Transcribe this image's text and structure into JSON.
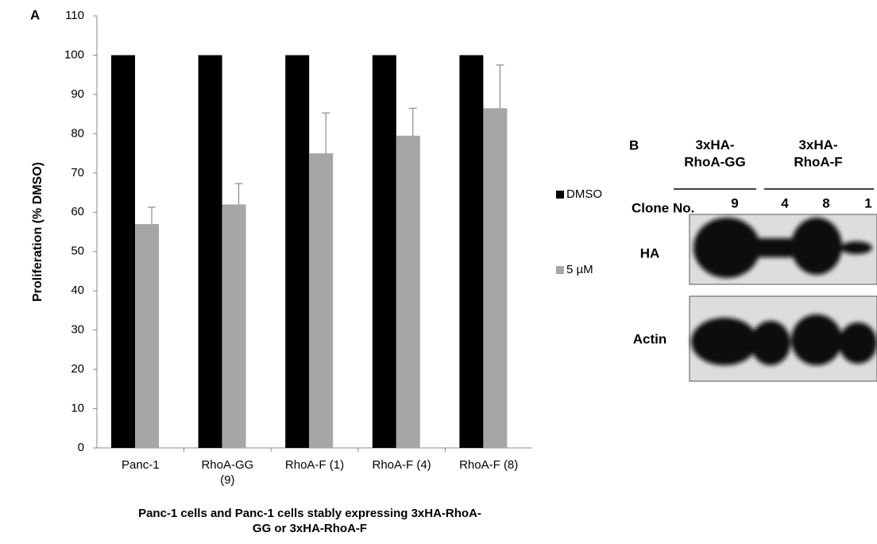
{
  "chart_data": {
    "type": "bar",
    "panel_label": "A",
    "ylabel": "Proliferation  (% DMSO)",
    "xlabel": "Panc-1  cells and Panc-1 cells stably expressing 3xHA-RhoA-\nGG or 3xHA-RhoA-F",
    "categories": [
      "Panc-1",
      "RhoA-GG\n(9)",
      "RhoA-F (1)",
      "RhoA-F (4)",
      "RhoA-F (8)"
    ],
    "series": [
      {
        "name": "DMSO",
        "color": "#000000",
        "values": [
          100,
          100,
          100,
          100,
          100
        ]
      },
      {
        "name": "5 µM",
        "color": "#a6a6a6",
        "values": [
          57,
          62,
          75,
          79.5,
          86.5
        ],
        "errors": [
          4.3,
          5.3,
          10.3,
          7,
          11
        ]
      }
    ],
    "ylim": [
      0,
      110
    ],
    "yticks": [
      0,
      10,
      20,
      30,
      40,
      50,
      60,
      70,
      80,
      90,
      100,
      110
    ],
    "grid": false,
    "legend": "right"
  },
  "panel_b": {
    "label": "B",
    "groups": [
      "3xHA-\nRhoA-GG",
      "3xHA-\nRhoA-F"
    ],
    "clone_label": "Clone No.",
    "lanes": [
      "9",
      "4",
      "8",
      "1"
    ],
    "rows": [
      "HA",
      "Actin"
    ]
  }
}
